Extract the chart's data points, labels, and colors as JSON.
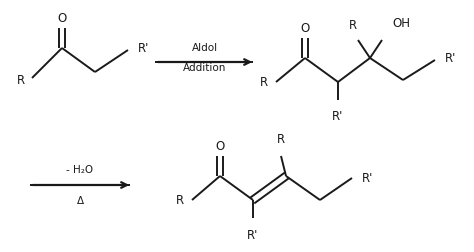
{
  "background_color": "#ffffff",
  "line_color": "#1a1a1a",
  "text_color": "#1a1a1a",
  "fig_width": 4.74,
  "fig_height": 2.52,
  "dpi": 100,
  "arrow1_label_line1": "Aldol",
  "arrow1_label_line2": "Addition",
  "arrow2_label_line1": "- H₂O",
  "arrow2_label_line2": "Δ",
  "lw": 1.4,
  "fs": 8.5,
  "fs_small": 7.5
}
